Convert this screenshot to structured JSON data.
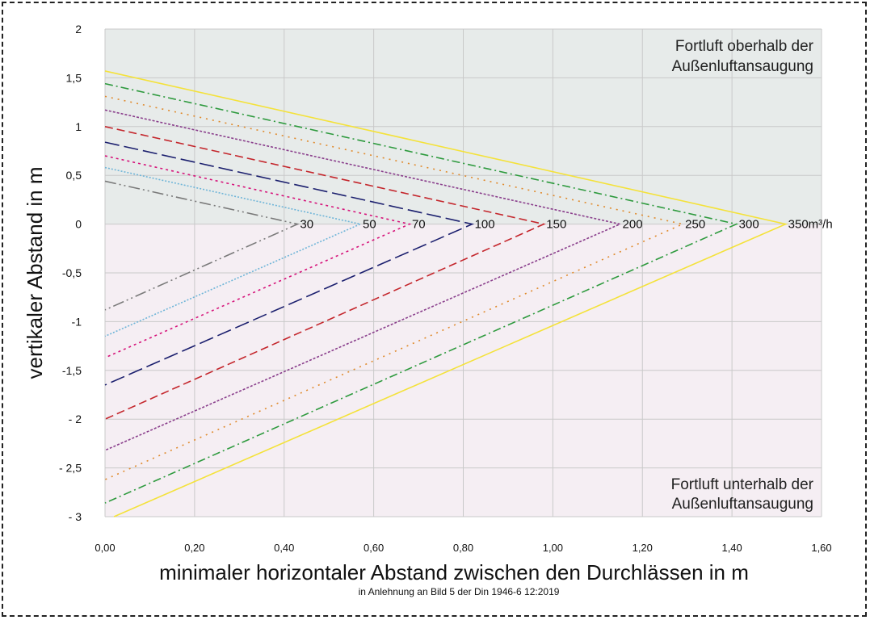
{
  "chart_data": {
    "type": "line",
    "title": "",
    "xlabel": "minimaler horizontaler Abstand zwischen den Durchlässen in m",
    "ylabel": "vertikaler Abstand in m",
    "note": "in Anlehnung an Bild 5 der Din 1946-6 12:2019",
    "xlim": [
      0,
      1.6
    ],
    "ylim": [
      -3,
      2
    ],
    "x_ticks": [
      "0,00",
      "0,20",
      "0,40",
      "0,60",
      "0,80",
      "1,00",
      "1,20",
      "1,40",
      "1,60"
    ],
    "y_ticks": [
      "2",
      "1,5",
      "1",
      "0,5",
      "0",
      "-0,5",
      "-1",
      "-1,5",
      "- 2",
      "- 2,5",
      "- 3"
    ],
    "zones": {
      "upper": [
        "Fortluft oberhalb der",
        "Außenluftansaugung"
      ],
      "lower": [
        "Fortluft unterhalb der",
        "Außenluftansaugung"
      ],
      "upper_color": "#e7ebea",
      "lower_color": "#f5eef3"
    },
    "grid": true,
    "series": [
      {
        "label": "30",
        "color": "#7a7a7a",
        "dash": "14,4,2,4,2,4",
        "apex_x": 0.43,
        "y_top": 0.44,
        "y_bottom": -0.88,
        "bottom_x": 0.0
      },
      {
        "label": "50",
        "color": "#6fb5d8",
        "dash": "2,2",
        "apex_x": 0.57,
        "y_top": 0.58,
        "y_bottom": -1.15,
        "bottom_x": 0.0
      },
      {
        "label": "70",
        "color": "#d6137a",
        "dash": "3,4",
        "apex_x": 0.68,
        "y_top": 0.7,
        "y_bottom": -1.37,
        "bottom_x": 0.0
      },
      {
        "label": "100",
        "color": "#1b1f6e",
        "dash": "18,6",
        "apex_x": 0.82,
        "y_top": 0.84,
        "y_bottom": -1.65,
        "bottom_x": 0.0
      },
      {
        "label": "150",
        "color": "#c4262c",
        "dash": "10,5",
        "apex_x": 0.98,
        "y_top": 1.0,
        "y_bottom": -2.0,
        "bottom_x": 0.0
      },
      {
        "label": "200",
        "color": "#8a3f8c",
        "dash": "3,2",
        "apex_x": 1.15,
        "y_top": 1.17,
        "y_bottom": -2.32,
        "bottom_x": 0.0
      },
      {
        "label": "250",
        "color": "#e08a2c",
        "dash": "2,6",
        "apex_x": 1.29,
        "y_top": 1.31,
        "y_bottom": -2.62,
        "bottom_x": 0.0
      },
      {
        "label": "300",
        "color": "#2e9a3e",
        "dash": "10,4,2,4",
        "apex_x": 1.41,
        "y_top": 1.44,
        "y_bottom": -2.86,
        "bottom_x": 0.0
      },
      {
        "label": "350m³/h",
        "color": "#f4e23a",
        "dash": "",
        "apex_x": 1.52,
        "y_top": 1.57,
        "y_bottom": -3.0,
        "bottom_x": 0.02
      }
    ]
  }
}
